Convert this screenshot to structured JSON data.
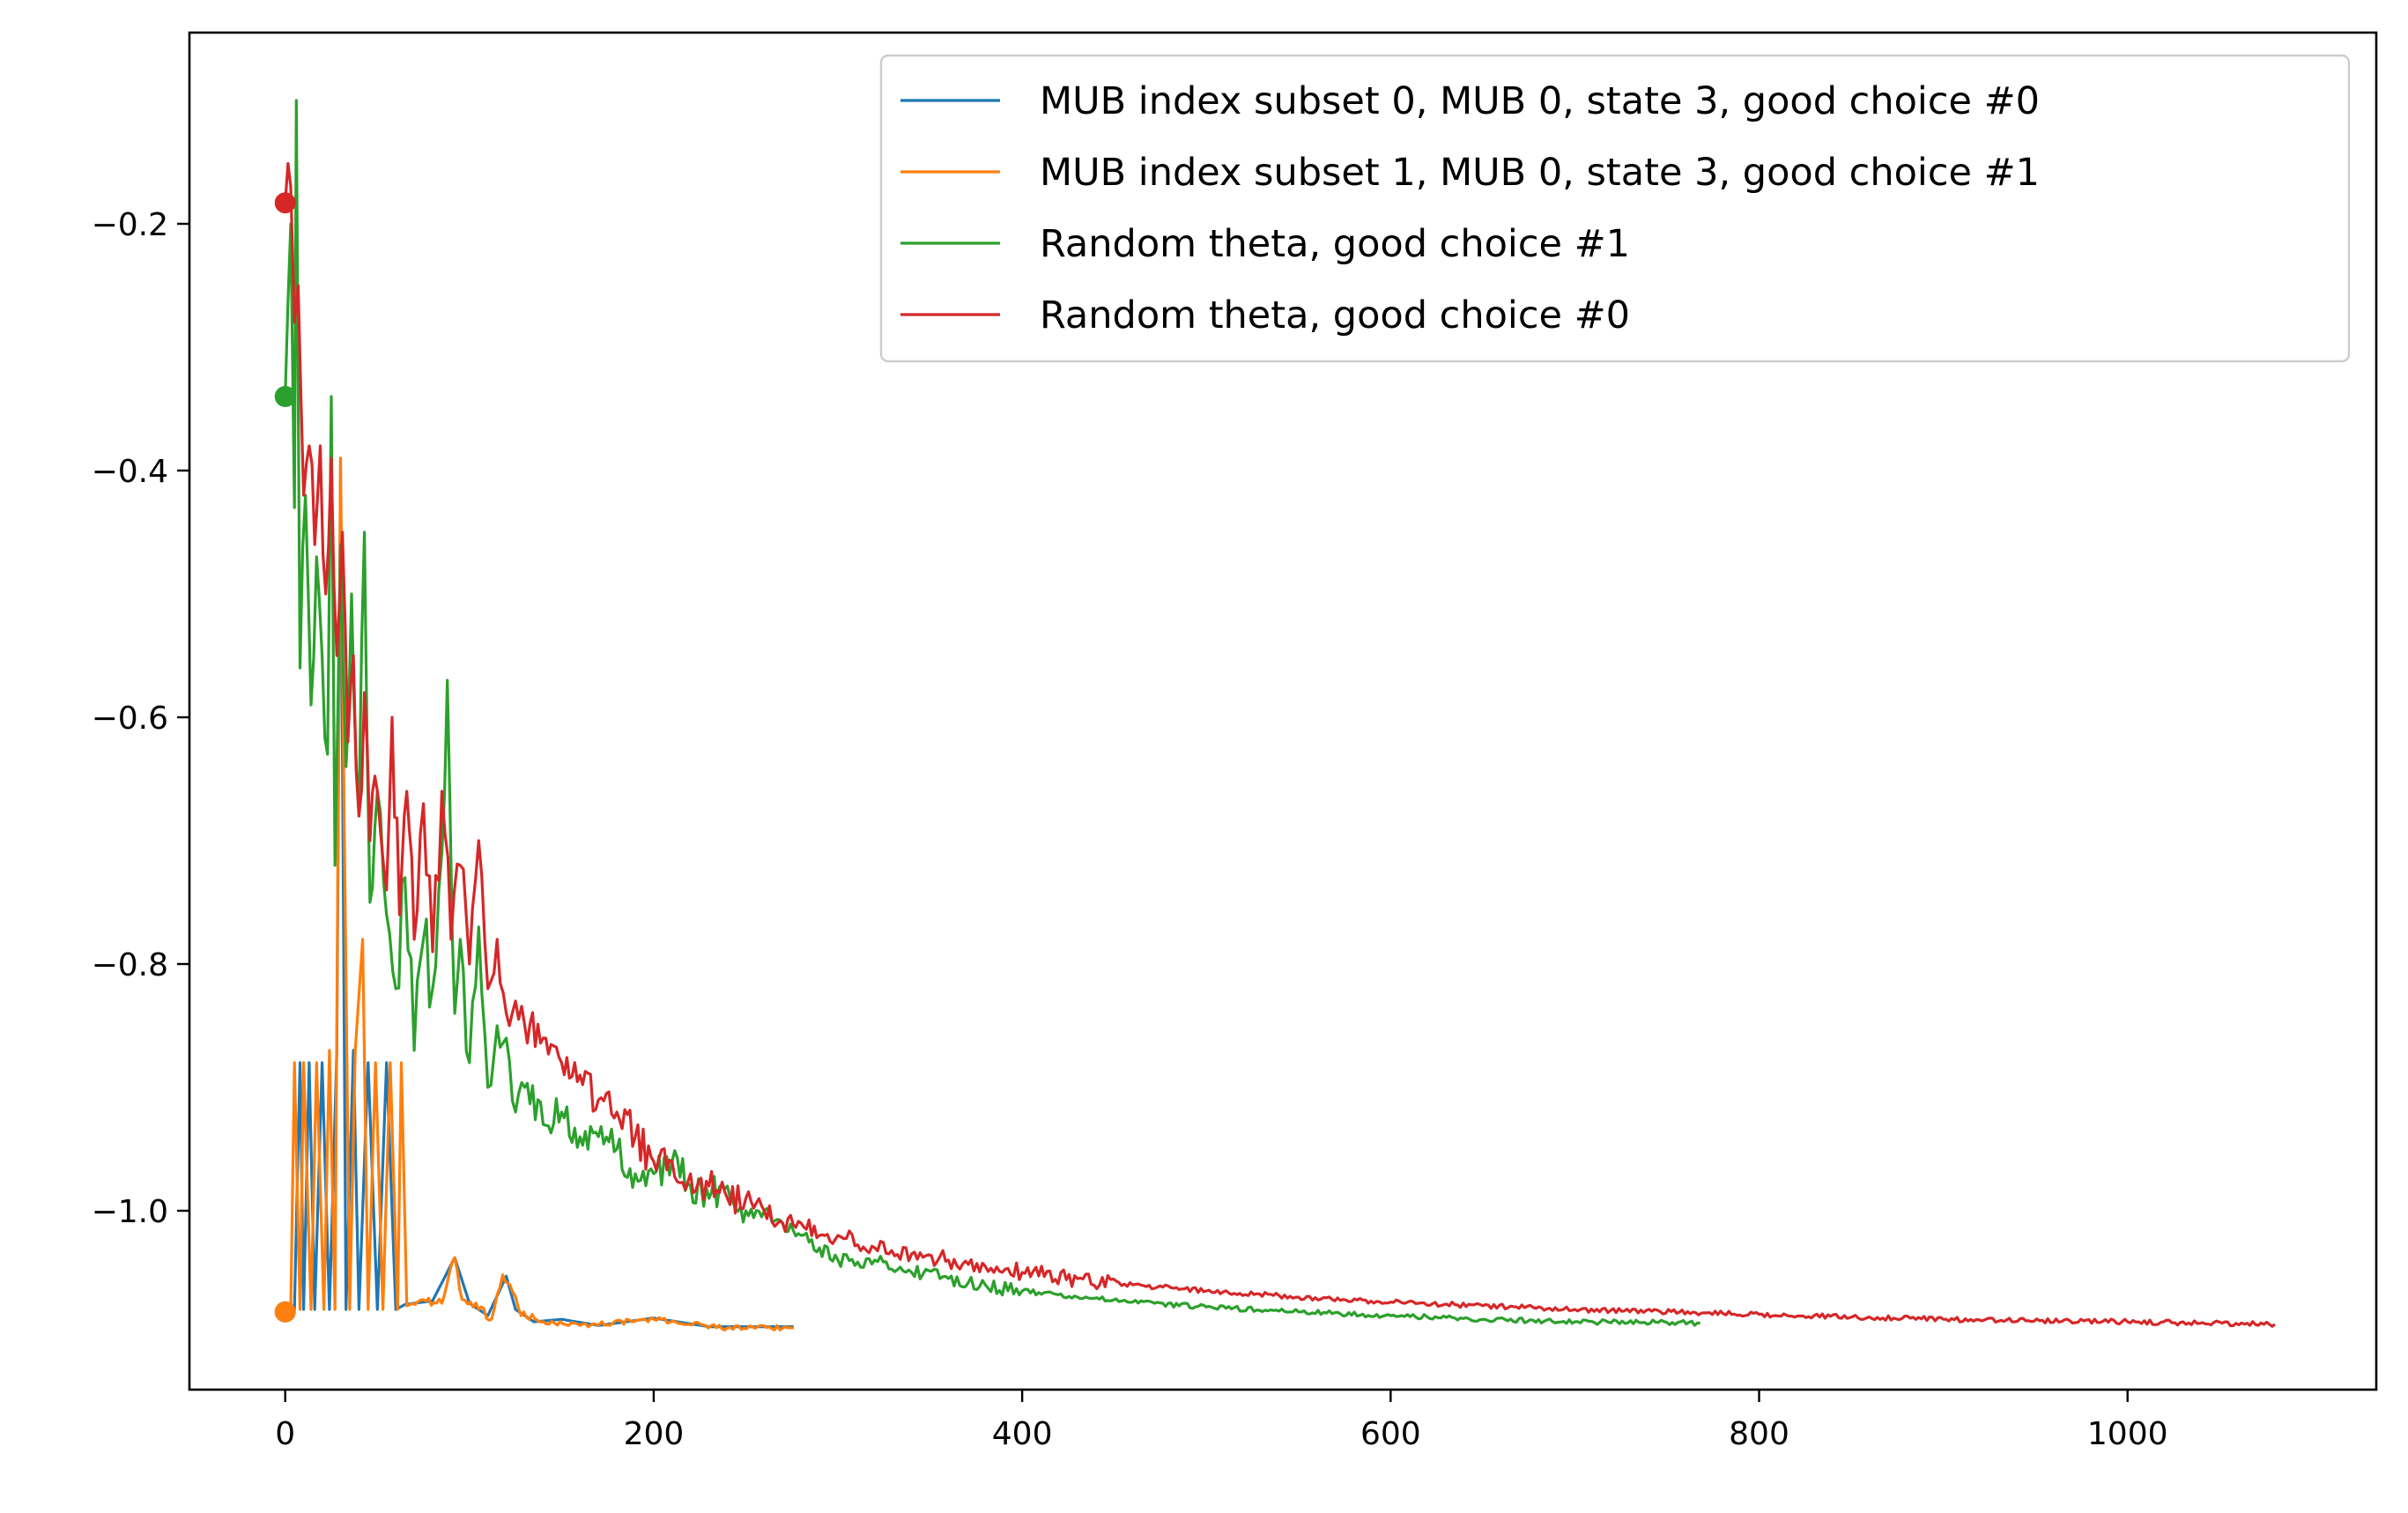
{
  "chart_data": {
    "type": "line",
    "title": "",
    "xlabel": "",
    "ylabel": "",
    "xlim": [
      -52,
      1135
    ],
    "ylim": [
      -1.145,
      -0.045
    ],
    "x_ticks": [
      0,
      200,
      400,
      600,
      800,
      1000
    ],
    "x_tick_labels": [
      "0",
      "200",
      "400",
      "600",
      "800",
      "1000"
    ],
    "y_ticks": [
      -1.0,
      -0.8,
      -0.6,
      -0.4,
      -0.2
    ],
    "y_tick_labels": [
      "−1.0",
      "−0.8",
      "−0.6",
      "−0.4",
      "−0.2"
    ],
    "grid": false,
    "legend_position": "top-right",
    "series": [
      {
        "name": "MUB index subset 0, MUB 0, state 3, good choice #0",
        "color": "#1f77b4",
        "start_marker": [
          0,
          -1.082
        ],
        "points": [
          [
            0,
            -1.082
          ],
          [
            5,
            -1.08
          ],
          [
            8,
            -0.88
          ],
          [
            10,
            -1.08
          ],
          [
            13,
            -0.88
          ],
          [
            16,
            -1.08
          ],
          [
            20,
            -0.88
          ],
          [
            24,
            -1.08
          ],
          [
            28,
            -0.87
          ],
          [
            30,
            -0.39
          ],
          [
            33,
            -1.08
          ],
          [
            37,
            -0.87
          ],
          [
            40,
            -1.08
          ],
          [
            45,
            -0.88
          ],
          [
            50,
            -1.08
          ],
          [
            55,
            -0.88
          ],
          [
            60,
            -1.08
          ],
          [
            65,
            -1.076
          ],
          [
            80,
            -1.073
          ],
          [
            92,
            -1.038
          ],
          [
            100,
            -1.075
          ],
          [
            110,
            -1.085
          ],
          [
            120,
            -1.053
          ],
          [
            125,
            -1.08
          ],
          [
            135,
            -1.09
          ],
          [
            150,
            -1.088
          ],
          [
            170,
            -1.093
          ],
          [
            200,
            -1.087
          ],
          [
            230,
            -1.094
          ],
          [
            276,
            -1.094
          ]
        ]
      },
      {
        "name": "MUB index subset 1, MUB 0, state 3, good choice #1",
        "color": "#ff7f0e",
        "start_marker": [
          0,
          -1.082
        ],
        "points": [
          [
            0,
            -1.082
          ],
          [
            3,
            -1.08
          ],
          [
            5,
            -0.88
          ],
          [
            8,
            -1.08
          ],
          [
            10,
            -0.88
          ],
          [
            14,
            -1.08
          ],
          [
            17,
            -0.88
          ],
          [
            21,
            -1.08
          ],
          [
            24,
            -0.87
          ],
          [
            27,
            -1.08
          ],
          [
            30,
            -0.39
          ],
          [
            32,
            -0.68
          ],
          [
            35,
            -1.08
          ],
          [
            38,
            -0.87
          ],
          [
            42,
            -0.78
          ],
          [
            45,
            -1.08
          ],
          [
            49,
            -0.88
          ],
          [
            53,
            -1.08
          ],
          [
            57,
            -0.88
          ],
          [
            61,
            -1.08
          ],
          [
            63,
            -0.88
          ],
          [
            66,
            -1.077
          ],
          [
            75,
            -1.072
          ],
          [
            85,
            -1.075
          ],
          [
            92,
            -1.038
          ],
          [
            96,
            -1.072
          ],
          [
            105,
            -1.08
          ],
          [
            112,
            -1.088
          ],
          [
            118,
            -1.052
          ],
          [
            122,
            -1.06
          ],
          [
            128,
            -1.085
          ],
          [
            140,
            -1.09
          ],
          [
            160,
            -1.093
          ],
          [
            200,
            -1.088
          ],
          [
            240,
            -1.095
          ],
          [
            276,
            -1.095
          ]
        ]
      },
      {
        "name": "Random theta, good choice #1",
        "color": "#2ca02c",
        "start_marker": [
          0,
          -0.34
        ],
        "points": [
          [
            0,
            -0.34
          ],
          [
            3,
            -0.2
          ],
          [
            5,
            -0.43
          ],
          [
            6,
            -0.1
          ],
          [
            8,
            -0.56
          ],
          [
            11,
            -0.42
          ],
          [
            14,
            -0.59
          ],
          [
            17,
            -0.47
          ],
          [
            20,
            -0.55
          ],
          [
            23,
            -0.63
          ],
          [
            25,
            -0.34
          ],
          [
            27,
            -0.72
          ],
          [
            30,
            -0.46
          ],
          [
            33,
            -0.64
          ],
          [
            36,
            -0.5
          ],
          [
            40,
            -0.68
          ],
          [
            43,
            -0.45
          ],
          [
            46,
            -0.75
          ],
          [
            50,
            -0.66
          ],
          [
            55,
            -0.76
          ],
          [
            60,
            -0.82
          ],
          [
            65,
            -0.73
          ],
          [
            70,
            -0.87
          ],
          [
            75,
            -0.78
          ],
          [
            80,
            -0.82
          ],
          [
            85,
            -0.71
          ],
          [
            88,
            -0.57
          ],
          [
            92,
            -0.84
          ],
          [
            95,
            -0.78
          ],
          [
            100,
            -0.88
          ],
          [
            105,
            -0.77
          ],
          [
            110,
            -0.9
          ],
          [
            115,
            -0.85
          ],
          [
            120,
            -0.86
          ],
          [
            125,
            -0.92
          ],
          [
            130,
            -0.9
          ],
          [
            140,
            -0.93
          ],
          [
            150,
            -0.92
          ],
          [
            160,
            -0.94
          ],
          [
            170,
            -0.94
          ],
          [
            180,
            -0.95
          ],
          [
            190,
            -0.97
          ],
          [
            200,
            -0.97
          ],
          [
            210,
            -0.96
          ],
          [
            220,
            -0.98
          ],
          [
            230,
            -0.99
          ],
          [
            240,
            -0.98
          ],
          [
            250,
            -1.0
          ],
          [
            260,
            -1.0
          ],
          [
            270,
            -1.01
          ],
          [
            280,
            -1.02
          ],
          [
            290,
            -1.03
          ],
          [
            300,
            -1.04
          ],
          [
            320,
            -1.04
          ],
          [
            340,
            -1.05
          ],
          [
            360,
            -1.055
          ],
          [
            380,
            -1.06
          ],
          [
            400,
            -1.065
          ],
          [
            430,
            -1.07
          ],
          [
            460,
            -1.074
          ],
          [
            500,
            -1.078
          ],
          [
            550,
            -1.082
          ],
          [
            600,
            -1.085
          ],
          [
            650,
            -1.088
          ],
          [
            700,
            -1.09
          ],
          [
            768,
            -1.091
          ]
        ]
      },
      {
        "name": "Random theta, good choice #0",
        "color": "#d62728",
        "start_marker": [
          0,
          -0.183
        ],
        "points": [
          [
            0,
            -0.183
          ],
          [
            3,
            -0.17
          ],
          [
            5,
            -0.28
          ],
          [
            7,
            -0.25
          ],
          [
            10,
            -0.42
          ],
          [
            13,
            -0.38
          ],
          [
            16,
            -0.46
          ],
          [
            19,
            -0.38
          ],
          [
            22,
            -0.5
          ],
          [
            25,
            -0.39
          ],
          [
            28,
            -0.55
          ],
          [
            31,
            -0.45
          ],
          [
            34,
            -0.62
          ],
          [
            37,
            -0.55
          ],
          [
            40,
            -0.68
          ],
          [
            43,
            -0.58
          ],
          [
            46,
            -0.7
          ],
          [
            50,
            -0.66
          ],
          [
            55,
            -0.74
          ],
          [
            58,
            -0.6
          ],
          [
            62,
            -0.76
          ],
          [
            66,
            -0.66
          ],
          [
            70,
            -0.78
          ],
          [
            75,
            -0.67
          ],
          [
            80,
            -0.79
          ],
          [
            85,
            -0.66
          ],
          [
            90,
            -0.78
          ],
          [
            95,
            -0.72
          ],
          [
            100,
            -0.8
          ],
          [
            105,
            -0.7
          ],
          [
            110,
            -0.82
          ],
          [
            115,
            -0.78
          ],
          [
            120,
            -0.84
          ],
          [
            125,
            -0.83
          ],
          [
            130,
            -0.85
          ],
          [
            140,
            -0.86
          ],
          [
            150,
            -0.88
          ],
          [
            160,
            -0.89
          ],
          [
            170,
            -0.91
          ],
          [
            180,
            -0.92
          ],
          [
            190,
            -0.94
          ],
          [
            200,
            -0.96
          ],
          [
            210,
            -0.96
          ],
          [
            220,
            -0.97
          ],
          [
            230,
            -0.98
          ],
          [
            240,
            -0.99
          ],
          [
            250,
            -0.99
          ],
          [
            260,
            -1.0
          ],
          [
            270,
            -1.01
          ],
          [
            280,
            -1.01
          ],
          [
            290,
            -1.02
          ],
          [
            300,
            -1.02
          ],
          [
            320,
            -1.03
          ],
          [
            340,
            -1.035
          ],
          [
            360,
            -1.04
          ],
          [
            380,
            -1.045
          ],
          [
            400,
            -1.05
          ],
          [
            430,
            -1.055
          ],
          [
            460,
            -1.06
          ],
          [
            500,
            -1.065
          ],
          [
            550,
            -1.07
          ],
          [
            600,
            -1.074
          ],
          [
            650,
            -1.077
          ],
          [
            700,
            -1.08
          ],
          [
            800,
            -1.084
          ],
          [
            900,
            -1.088
          ],
          [
            1000,
            -1.09
          ],
          [
            1080,
            -1.092
          ]
        ]
      }
    ]
  }
}
